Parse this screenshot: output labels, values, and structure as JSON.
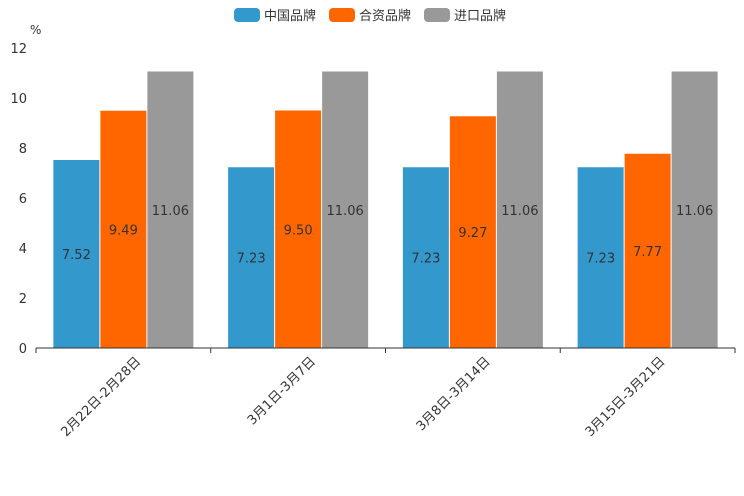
{
  "chart_data": {
    "type": "bar",
    "title": "",
    "ylabel": "%",
    "xlabel": "",
    "ylim": [
      0,
      12
    ],
    "yticks": [
      0,
      2,
      4,
      6,
      8,
      10,
      12
    ],
    "categories": [
      "2月22日-2月28日",
      "3月1日-3月7日",
      "3月8日-3月14日",
      "3月15日-3月21日"
    ],
    "series": [
      {
        "name": "中国品牌",
        "color": "#3399cc",
        "values": [
          7.52,
          7.23,
          7.23,
          7.23
        ],
        "labels": [
          "7.52",
          "7.23",
          "7.23",
          "7.23"
        ]
      },
      {
        "name": "合资品牌",
        "color": "#ff6600",
        "values": [
          9.49,
          9.5,
          9.27,
          7.77
        ],
        "labels": [
          "9.49",
          "9.50",
          "9.27",
          "7.77"
        ]
      },
      {
        "name": "进口品牌",
        "color": "#999999",
        "values": [
          11.06,
          11.06,
          11.06,
          11.06
        ],
        "labels": [
          "11.06",
          "11.06",
          "11.06",
          "11.06"
        ]
      }
    ],
    "legend_position": "top-center",
    "grid": false
  }
}
